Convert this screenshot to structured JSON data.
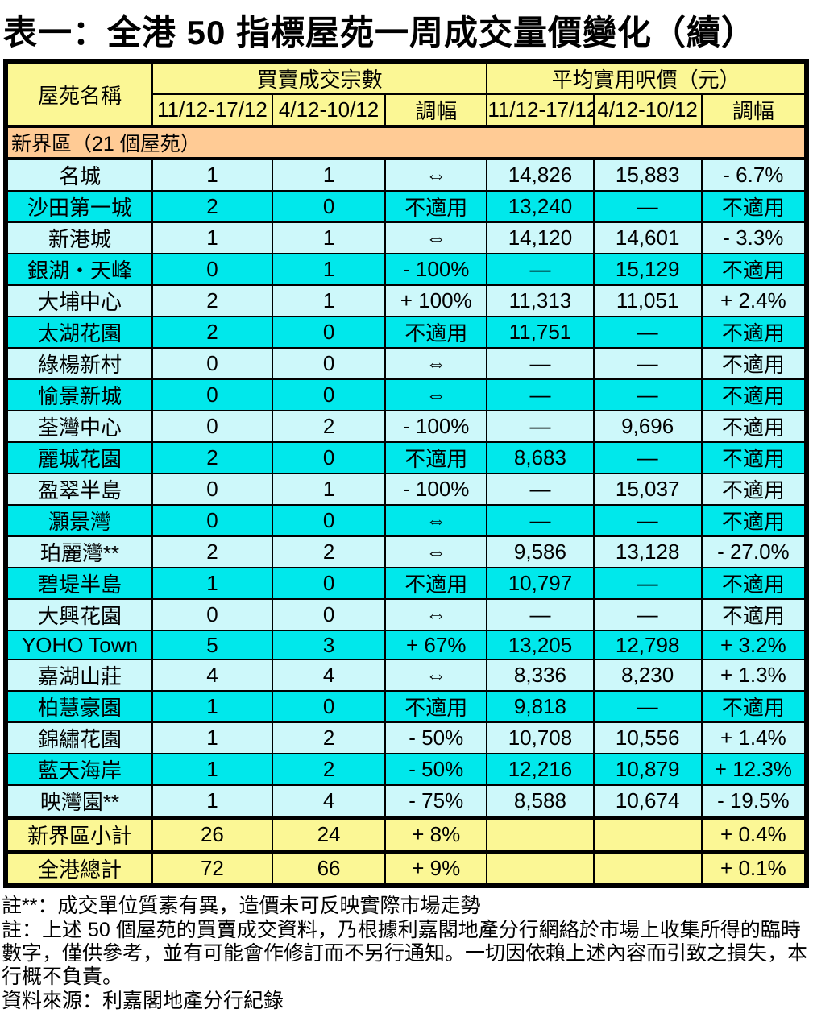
{
  "title": "表一：全港 50 指標屋苑一周成交量價變化（續）",
  "table": {
    "header": {
      "estate_name": "屋苑名稱",
      "deals_group": "買賣成交宗數",
      "price_group": "平均實用呎價（元）",
      "week_current": "11/12-17/12",
      "week_previous": "4/12-10/12",
      "change": "調幅"
    },
    "section_label": "新界區（21 個屋苑）",
    "rows": [
      [
        "名城",
        "1",
        "1",
        "⇔",
        "14,826",
        "15,883",
        "- 6.7%"
      ],
      [
        "沙田第一城",
        "2",
        "0",
        "不適用",
        "13,240",
        "—",
        "不適用"
      ],
      [
        "新港城",
        "1",
        "1",
        "⇔",
        "14,120",
        "14,601",
        "- 3.3%"
      ],
      [
        "銀湖・天峰",
        "0",
        "1",
        "- 100%",
        "—",
        "15,129",
        "不適用"
      ],
      [
        "大埔中心",
        "2",
        "1",
        "+ 100%",
        "11,313",
        "11,051",
        "+ 2.4%"
      ],
      [
        "太湖花園",
        "2",
        "0",
        "不適用",
        "11,751",
        "—",
        "不適用"
      ],
      [
        "綠楊新村",
        "0",
        "0",
        "⇔",
        "—",
        "—",
        "不適用"
      ],
      [
        "愉景新城",
        "0",
        "0",
        "⇔",
        "—",
        "—",
        "不適用"
      ],
      [
        "荃灣中心",
        "0",
        "2",
        "- 100%",
        "—",
        "9,696",
        "不適用"
      ],
      [
        "麗城花園",
        "2",
        "0",
        "不適用",
        "8,683",
        "—",
        "不適用"
      ],
      [
        "盈翠半島",
        "0",
        "1",
        "- 100%",
        "—",
        "15,037",
        "不適用"
      ],
      [
        "灝景灣",
        "0",
        "0",
        "⇔",
        "—",
        "—",
        "不適用"
      ],
      [
        "珀麗灣**",
        "2",
        "2",
        "⇔",
        "9,586",
        "13,128",
        "- 27.0%"
      ],
      [
        "碧堤半島",
        "1",
        "0",
        "不適用",
        "10,797",
        "—",
        "不適用"
      ],
      [
        "大興花園",
        "0",
        "0",
        "⇔",
        "—",
        "—",
        "不適用"
      ],
      [
        "YOHO Town",
        "5",
        "3",
        "+ 67%",
        "13,205",
        "12,798",
        "+ 3.2%"
      ],
      [
        "嘉湖山莊",
        "4",
        "4",
        "⇔",
        "8,336",
        "8,230",
        "+ 1.3%"
      ],
      [
        "柏慧豪園",
        "1",
        "0",
        "不適用",
        "9,818",
        "—",
        "不適用"
      ],
      [
        "錦繡花園",
        "1",
        "2",
        "- 50%",
        "10,708",
        "10,556",
        "+ 1.4%"
      ],
      [
        "藍天海岸",
        "1",
        "2",
        "- 50%",
        "12,216",
        "10,879",
        "+ 12.3%"
      ],
      [
        "映灣園**",
        "1",
        "4",
        "- 75%",
        "8,588",
        "10,674",
        "- 19.5%"
      ]
    ],
    "subtotal_row": [
      "新界區小計",
      "26",
      "24",
      "+ 8%",
      "",
      "",
      "+ 0.4%"
    ],
    "total_row": [
      "全港總計",
      "72",
      "66",
      "+ 9%",
      "",
      "",
      "+ 0.1%"
    ]
  },
  "notes": {
    "note1": "註**：成交單位質素有異，造價未可反映實際市場走勢",
    "note2": "註：上述 50 個屋苑的買賣成交資料，乃根據利嘉閣地產分行網絡於市場上收集所得的臨時數字，僅供參考，並有可能會作修訂而不另行通知。一切因依賴上述內容而引致之損失，本行概不負責。",
    "source": "資料來源：利嘉閣地產分行紀錄"
  },
  "colors": {
    "header_bg": "#FBF795",
    "section_bg": "#FFCB95",
    "row_light_bg": "#CDF8FA",
    "row_bright_bg": "#00E8EB",
    "summary_bg": "#FBF795",
    "border": "#000000"
  }
}
